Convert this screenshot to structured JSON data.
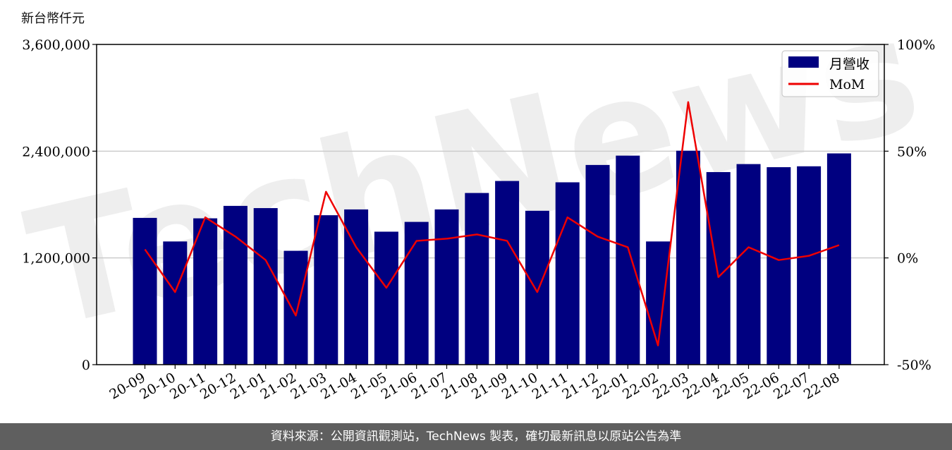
{
  "chart_data": {
    "type": "bar+line",
    "y_unit_label": "新台幣仟元",
    "categories": [
      "20-09",
      "20-10",
      "20-11",
      "20-12",
      "21-01",
      "21-02",
      "21-03",
      "21-04",
      "21-05",
      "21-06",
      "21-07",
      "21-08",
      "21-09",
      "21-10",
      "21-11",
      "21-12",
      "22-01",
      "22-02",
      "22-03",
      "22-04",
      "22-05",
      "22-06",
      "22-07",
      "22-08"
    ],
    "series": [
      {
        "name": "月營收",
        "axis": "left",
        "kind": "bar",
        "values": [
          1650000,
          1385000,
          1645000,
          1785000,
          1760000,
          1280000,
          1680000,
          1745000,
          1495000,
          1605000,
          1745000,
          1930000,
          2065000,
          1730000,
          2050000,
          2245000,
          2350000,
          1385000,
          2405000,
          2165000,
          2255000,
          2220000,
          2230000,
          2375000
        ]
      },
      {
        "name": "MoM",
        "axis": "right",
        "kind": "line",
        "values": [
          4,
          -16,
          19,
          10,
          -1,
          -27,
          31,
          5,
          -14,
          8,
          9,
          11,
          8,
          -16,
          19,
          10,
          5,
          -41,
          73,
          -9,
          5,
          -1,
          1,
          6
        ]
      }
    ],
    "left_axis": {
      "min": 0,
      "max": 3600000,
      "ticks": [
        "0",
        "1,200,000",
        "2,400,000",
        "3,600,000"
      ]
    },
    "right_axis": {
      "min": -50,
      "max": 100,
      "ticks": [
        "-50%",
        "0%",
        "50%",
        "100%"
      ]
    },
    "legend": {
      "position": "top-right"
    },
    "colors": {
      "bar": "#000080",
      "line": "#ee0000",
      "grid": "#cccccc",
      "watermark": "#e0e0e0",
      "watermark_accent": "#f6d3d3"
    }
  },
  "watermark": {
    "text": "TechNews"
  },
  "footer": {
    "text": "資料來源：公開資訊觀測站，TechNews 製表，確切最新訊息以原站公告為準"
  }
}
